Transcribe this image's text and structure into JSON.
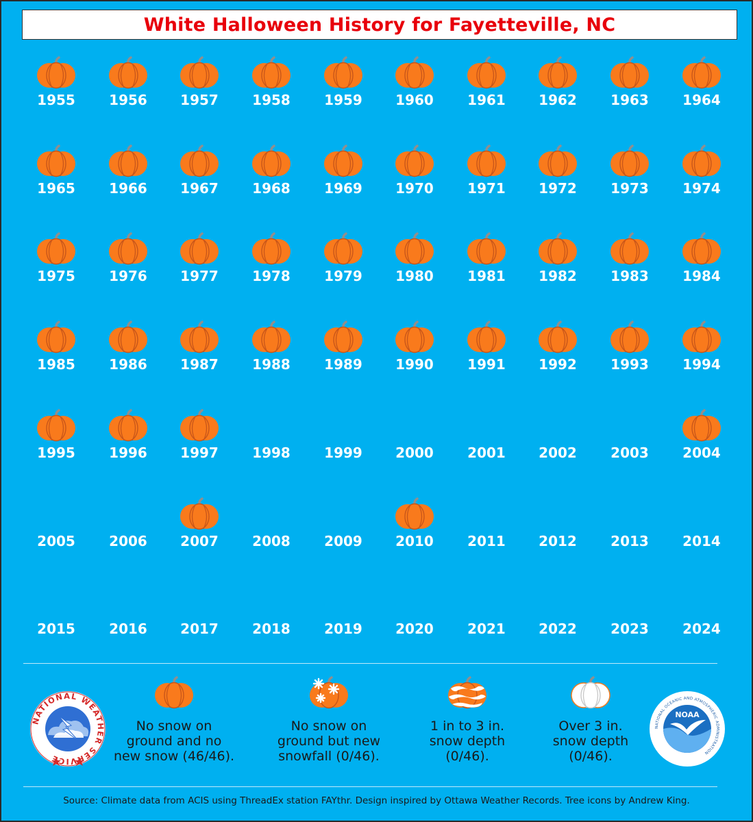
{
  "title": "White Halloween History for Fayetteville, NC",
  "colors": {
    "background": "#00b0f0",
    "title": "#e8000b",
    "pumpkin": "#f97a1c",
    "pumpkin_rib": "#c8561a",
    "stem": "#8f8f8f",
    "year_text": "#ffffff"
  },
  "chart_data": {
    "type": "table",
    "rows": [
      {
        "years": [
          "1955",
          "1956",
          "1957",
          "1958",
          "1959",
          "1960",
          "1961",
          "1962",
          "1963",
          "1964"
        ],
        "pumpkin": [
          true,
          true,
          true,
          true,
          true,
          true,
          true,
          true,
          true,
          true
        ]
      },
      {
        "years": [
          "1965",
          "1966",
          "1967",
          "1968",
          "1969",
          "1970",
          "1971",
          "1972",
          "1973",
          "1974"
        ],
        "pumpkin": [
          true,
          true,
          true,
          true,
          true,
          true,
          true,
          true,
          true,
          true
        ]
      },
      {
        "years": [
          "1975",
          "1976",
          "1977",
          "1978",
          "1979",
          "1980",
          "1981",
          "1982",
          "1983",
          "1984"
        ],
        "pumpkin": [
          true,
          true,
          true,
          true,
          true,
          true,
          true,
          true,
          true,
          true
        ]
      },
      {
        "years": [
          "1985",
          "1986",
          "1987",
          "1988",
          "1989",
          "1990",
          "1991",
          "1992",
          "1993",
          "1994"
        ],
        "pumpkin": [
          true,
          true,
          true,
          true,
          true,
          true,
          true,
          true,
          true,
          true
        ]
      },
      {
        "years": [
          "1995",
          "1996",
          "1997",
          "1998",
          "1999",
          "2000",
          "2001",
          "2002",
          "2003",
          "2004"
        ],
        "pumpkin": [
          true,
          true,
          true,
          false,
          false,
          false,
          false,
          false,
          false,
          true
        ]
      },
      {
        "years": [
          "2005",
          "2006",
          "2007",
          "2008",
          "2009",
          "2010",
          "2011",
          "2012",
          "2013",
          "2014"
        ],
        "pumpkin": [
          false,
          false,
          true,
          false,
          false,
          true,
          false,
          false,
          false,
          false
        ]
      },
      {
        "years": [
          "2015",
          "2016",
          "2017",
          "2018",
          "2019",
          "2020",
          "2021",
          "2022",
          "2023",
          "2024"
        ],
        "pumpkin": [
          false,
          false,
          false,
          false,
          false,
          false,
          false,
          false,
          false,
          false
        ]
      }
    ]
  },
  "legend": [
    {
      "icon": "plain-pumpkin-icon",
      "lines": [
        "No snow on",
        "ground and no",
        "new snow (46/46)."
      ]
    },
    {
      "icon": "snowflake-pumpkin-icon",
      "lines": [
        "No snow on",
        "ground but new",
        "snowfall (0/46)."
      ]
    },
    {
      "icon": "snow-striped-pumpkin-icon",
      "lines": [
        "1 in to 3 in.",
        "snow depth",
        "(0/46)."
      ]
    },
    {
      "icon": "white-pumpkin-icon",
      "lines": [
        "Over 3 in.",
        "snow depth",
        "(0/46)."
      ]
    }
  ],
  "logos": {
    "nws": {
      "icon": "nws-logo-icon",
      "text": "NATIONAL WEATHER SERVICE"
    },
    "noaa": {
      "icon": "noaa-logo-icon",
      "text": "NOAA",
      "ring_text": "NATIONAL OCEANIC AND ATMOSPHERIC ADMINISTRATION"
    }
  },
  "source": "Source: Climate data from ACIS using ThreadEx station FAYthr. Design inspired by Ottawa Weather Records. Tree icons by Andrew King."
}
